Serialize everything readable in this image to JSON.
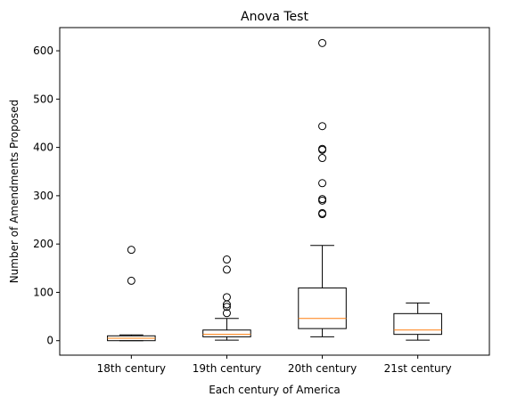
{
  "chart_data": {
    "type": "boxplot",
    "title": "Anova Test",
    "xlabel": "Each century of America",
    "ylabel": "Number of Amendments Proposed",
    "ylim": [
      -30,
      648
    ],
    "yticks": [
      0,
      100,
      200,
      300,
      400,
      500,
      600
    ],
    "grid": false,
    "colors": {
      "box": "#000000",
      "median": "#ff7f0e",
      "flier": "#000000"
    },
    "categories": [
      "18th century",
      "19th century",
      "20th century",
      "21st century"
    ],
    "boxes": [
      {
        "category": "18th century",
        "whisker_low": 0,
        "q1": 0,
        "median": 5,
        "q3": 10,
        "whisker_high": 12,
        "fliers": [
          124,
          188
        ]
      },
      {
        "category": "19th century",
        "whisker_low": 1,
        "q1": 8,
        "median": 13,
        "q3": 22,
        "whisker_high": 46,
        "fliers": [
          57,
          70,
          75,
          90,
          147,
          168
        ]
      },
      {
        "category": "20th century",
        "whisker_low": 8,
        "q1": 25,
        "median": 46,
        "q3": 109,
        "whisker_high": 197,
        "fliers": [
          262,
          264,
          290,
          293,
          326,
          378,
          395,
          397,
          444,
          616
        ]
      },
      {
        "category": "21st century",
        "whisker_low": 1,
        "q1": 13,
        "median": 22,
        "q3": 56,
        "whisker_high": 78,
        "fliers": []
      }
    ]
  }
}
